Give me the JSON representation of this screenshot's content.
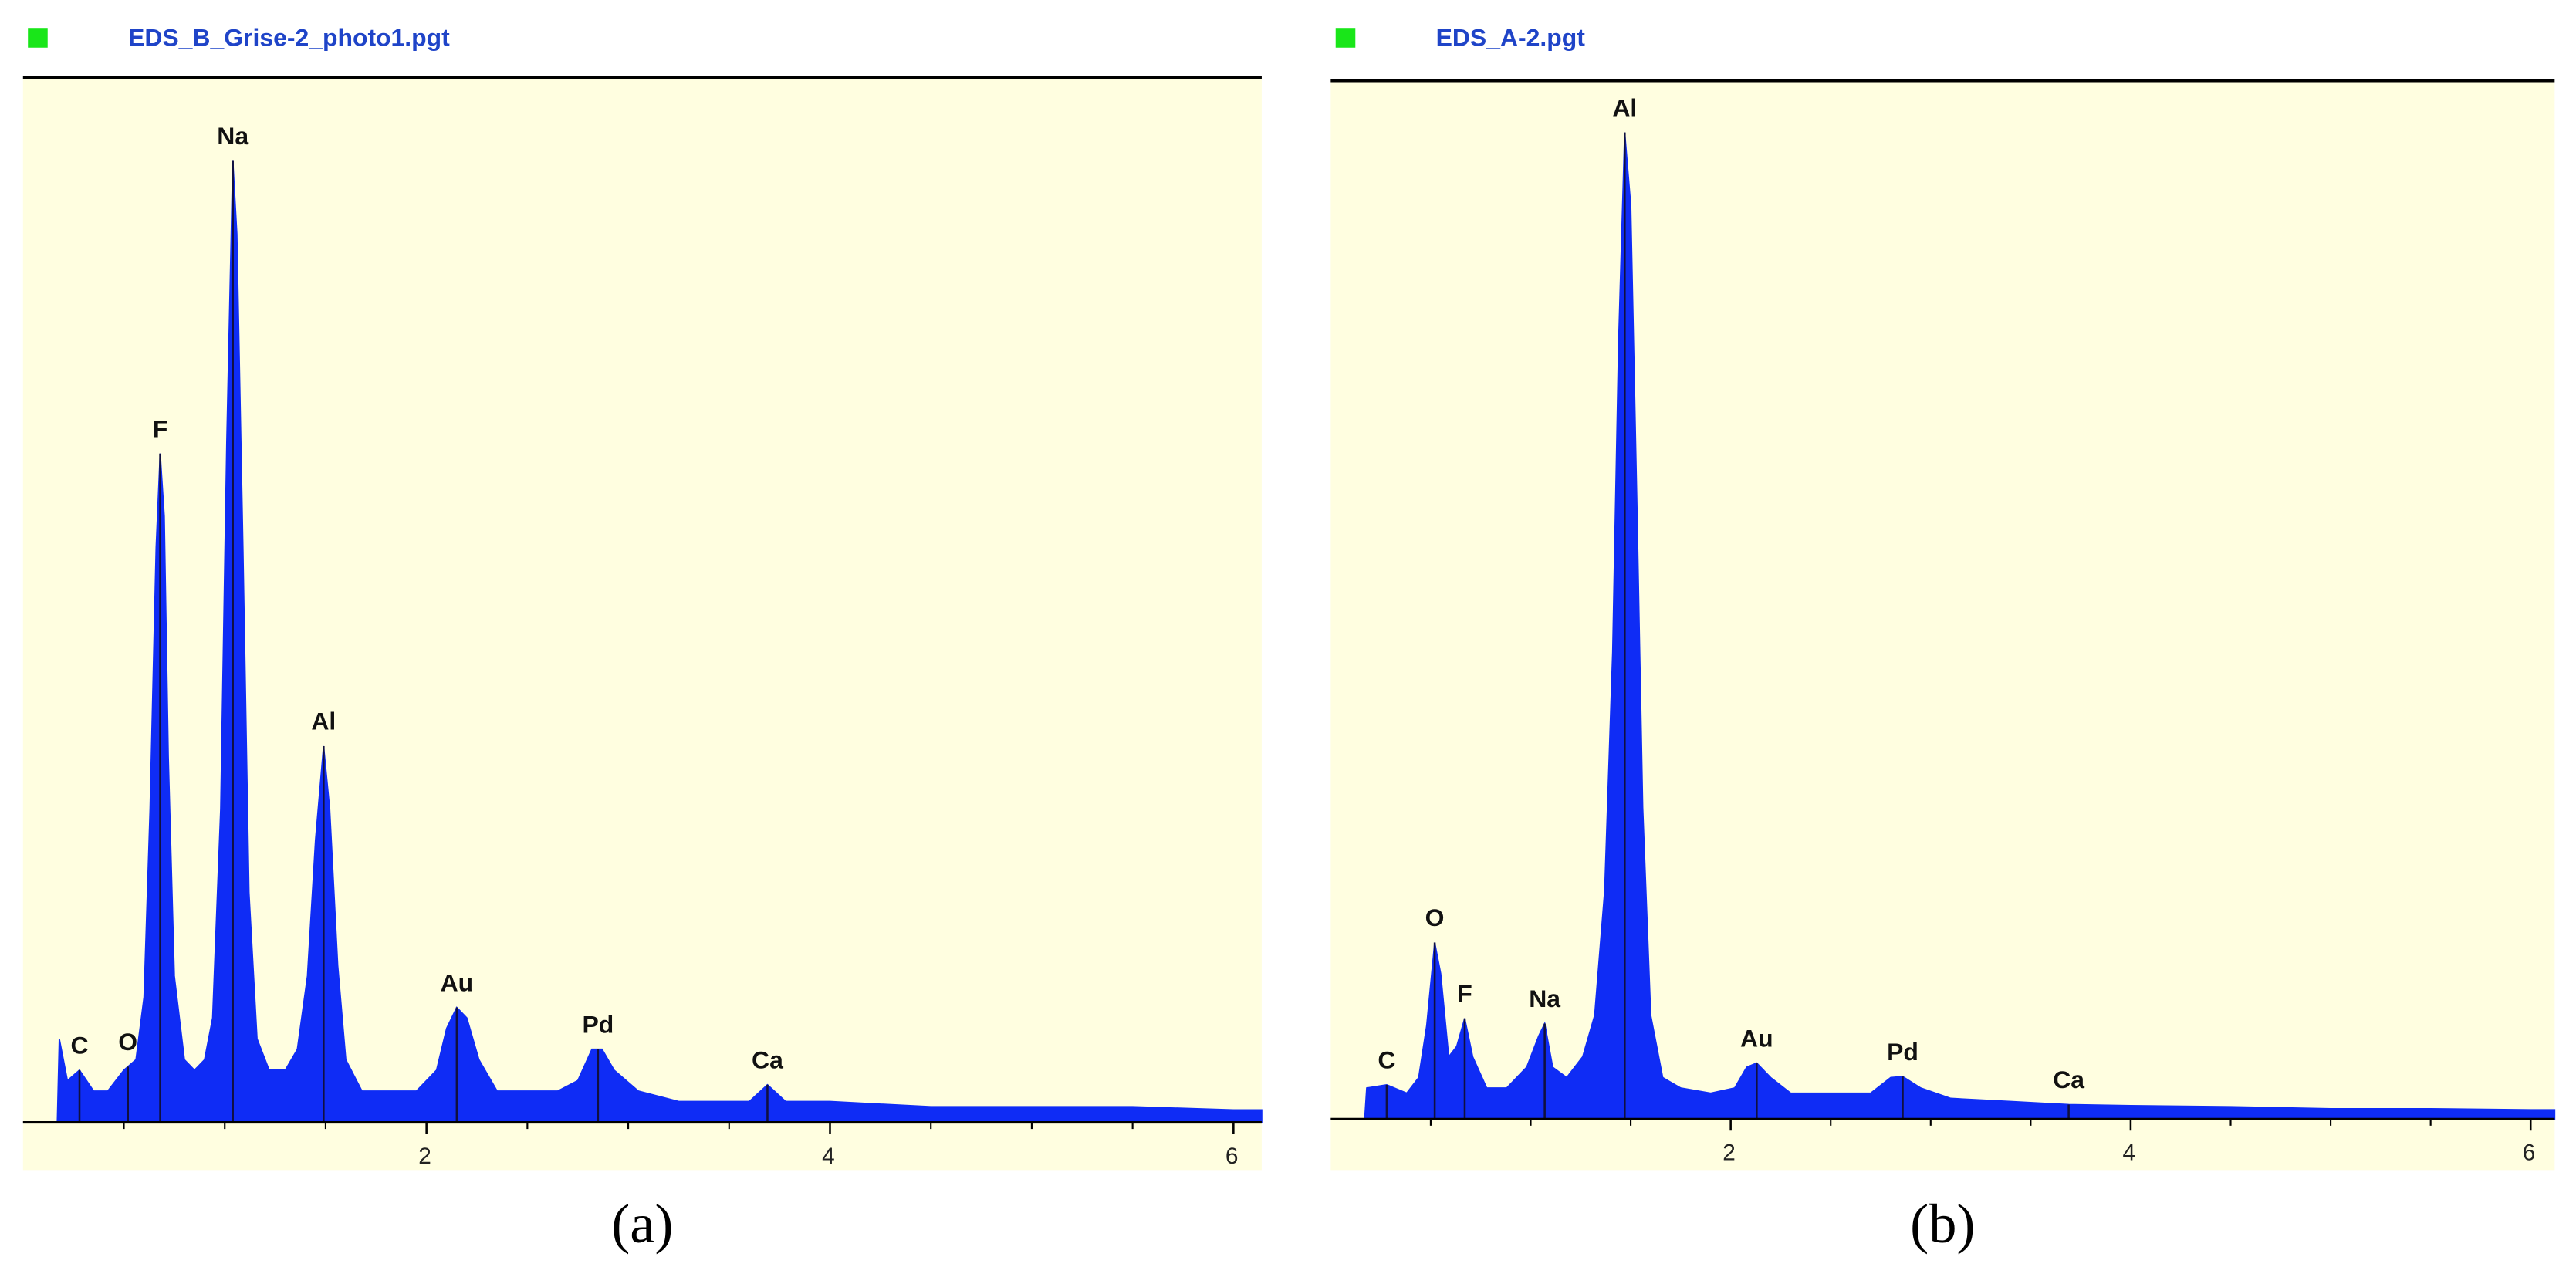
{
  "chart_data": [
    {
      "type": "area",
      "title": "EDS_B_Grise-2_photo1.pgt",
      "caption": "(a)",
      "color": "#0f2cf5",
      "x": [
        0.17,
        0.18,
        0.22,
        0.28,
        0.35,
        0.42,
        0.5,
        0.56,
        0.6,
        0.63,
        0.66,
        0.68,
        0.7,
        0.72,
        0.75,
        0.8,
        0.85,
        0.9,
        0.94,
        0.98,
        1.01,
        1.04,
        1.06,
        1.09,
        1.12,
        1.16,
        1.22,
        1.3,
        1.36,
        1.41,
        1.45,
        1.49,
        1.52,
        1.56,
        1.6,
        1.68,
        1.8,
        1.95,
        2.05,
        2.1,
        2.15,
        2.2,
        2.26,
        2.35,
        2.5,
        2.65,
        2.75,
        2.82,
        2.87,
        2.93,
        3.05,
        3.25,
        3.45,
        3.6,
        3.69,
        3.78,
        4.0,
        4.5,
        5.0,
        5.5,
        6.0,
        6.14
      ],
      "values": [
        0,
        8,
        4,
        5,
        3,
        3,
        5,
        6,
        12,
        30,
        55,
        64,
        58,
        35,
        14,
        6,
        5,
        6,
        10,
        30,
        65,
        92,
        85,
        55,
        22,
        8,
        5,
        5,
        7,
        14,
        27,
        36,
        30,
        15,
        6,
        3,
        3,
        3,
        5,
        9,
        11,
        10,
        6,
        3,
        3,
        3,
        4,
        7,
        7,
        5,
        3,
        2,
        2,
        2,
        3.6,
        2,
        2,
        1.5,
        1.5,
        1.5,
        1.2,
        1.2
      ],
      "xlim": [
        0,
        6.14
      ],
      "ylim": [
        0,
        100
      ],
      "xticks": [
        2,
        4,
        6
      ],
      "xticks_minor": [
        0.5,
        1,
        1.5,
        2.5,
        3,
        3.5,
        4.5,
        5,
        5.5
      ],
      "peaks": [
        {
          "label": "C",
          "x": 0.28
        },
        {
          "label": "O",
          "x": 0.52
        },
        {
          "label": "F",
          "x": 0.68
        },
        {
          "label": "Na",
          "x": 1.04
        },
        {
          "label": "Al",
          "x": 1.49
        },
        {
          "label": "Au",
          "x": 2.15
        },
        {
          "label": "Pd",
          "x": 2.85
        },
        {
          "label": "Ca",
          "x": 3.69
        }
      ]
    },
    {
      "type": "area",
      "title": "EDS_A-2.pgt",
      "caption": "(b)",
      "color": "#0f2cf5",
      "x": [
        0.17,
        0.18,
        0.28,
        0.38,
        0.44,
        0.48,
        0.52,
        0.55,
        0.59,
        0.63,
        0.67,
        0.71,
        0.78,
        0.88,
        0.98,
        1.04,
        1.07,
        1.11,
        1.18,
        1.26,
        1.32,
        1.37,
        1.41,
        1.44,
        1.47,
        1.5,
        1.53,
        1.56,
        1.6,
        1.66,
        1.75,
        1.9,
        2.02,
        2.08,
        2.13,
        2.2,
        2.3,
        2.5,
        2.7,
        2.8,
        2.86,
        2.95,
        3.1,
        3.4,
        3.69,
        4.0,
        4.5,
        5.0,
        5.5,
        6.0,
        6.12
      ],
      "values": [
        0,
        3,
        3.3,
        2.5,
        4,
        9,
        17,
        14,
        6,
        7,
        9.7,
        6,
        3,
        3,
        5,
        8,
        9.2,
        5,
        4,
        6,
        10,
        22,
        45,
        75,
        95,
        88,
        60,
        30,
        10,
        4,
        3,
        2.5,
        3,
        5,
        5.4,
        4,
        2.5,
        2.5,
        2.5,
        4,
        4.1,
        3,
        2,
        1.7,
        1.4,
        1.3,
        1.2,
        1,
        1,
        0.9,
        0.9
      ],
      "xlim": [
        0,
        6.12
      ],
      "ylim": [
        0,
        100
      ],
      "xticks": [
        2,
        4,
        6
      ],
      "xticks_minor": [
        0.5,
        1,
        1.5,
        2.5,
        3,
        3.5,
        4.5,
        5,
        5.5
      ],
      "peaks": [
        {
          "label": "C",
          "x": 0.28
        },
        {
          "label": "O",
          "x": 0.52
        },
        {
          "label": "F",
          "x": 0.67
        },
        {
          "label": "Na",
          "x": 1.07
        },
        {
          "label": "Al",
          "x": 1.47
        },
        {
          "label": "Au",
          "x": 2.13
        },
        {
          "label": "Pd",
          "x": 2.86
        },
        {
          "label": "Ca",
          "x": 3.69
        }
      ]
    }
  ]
}
